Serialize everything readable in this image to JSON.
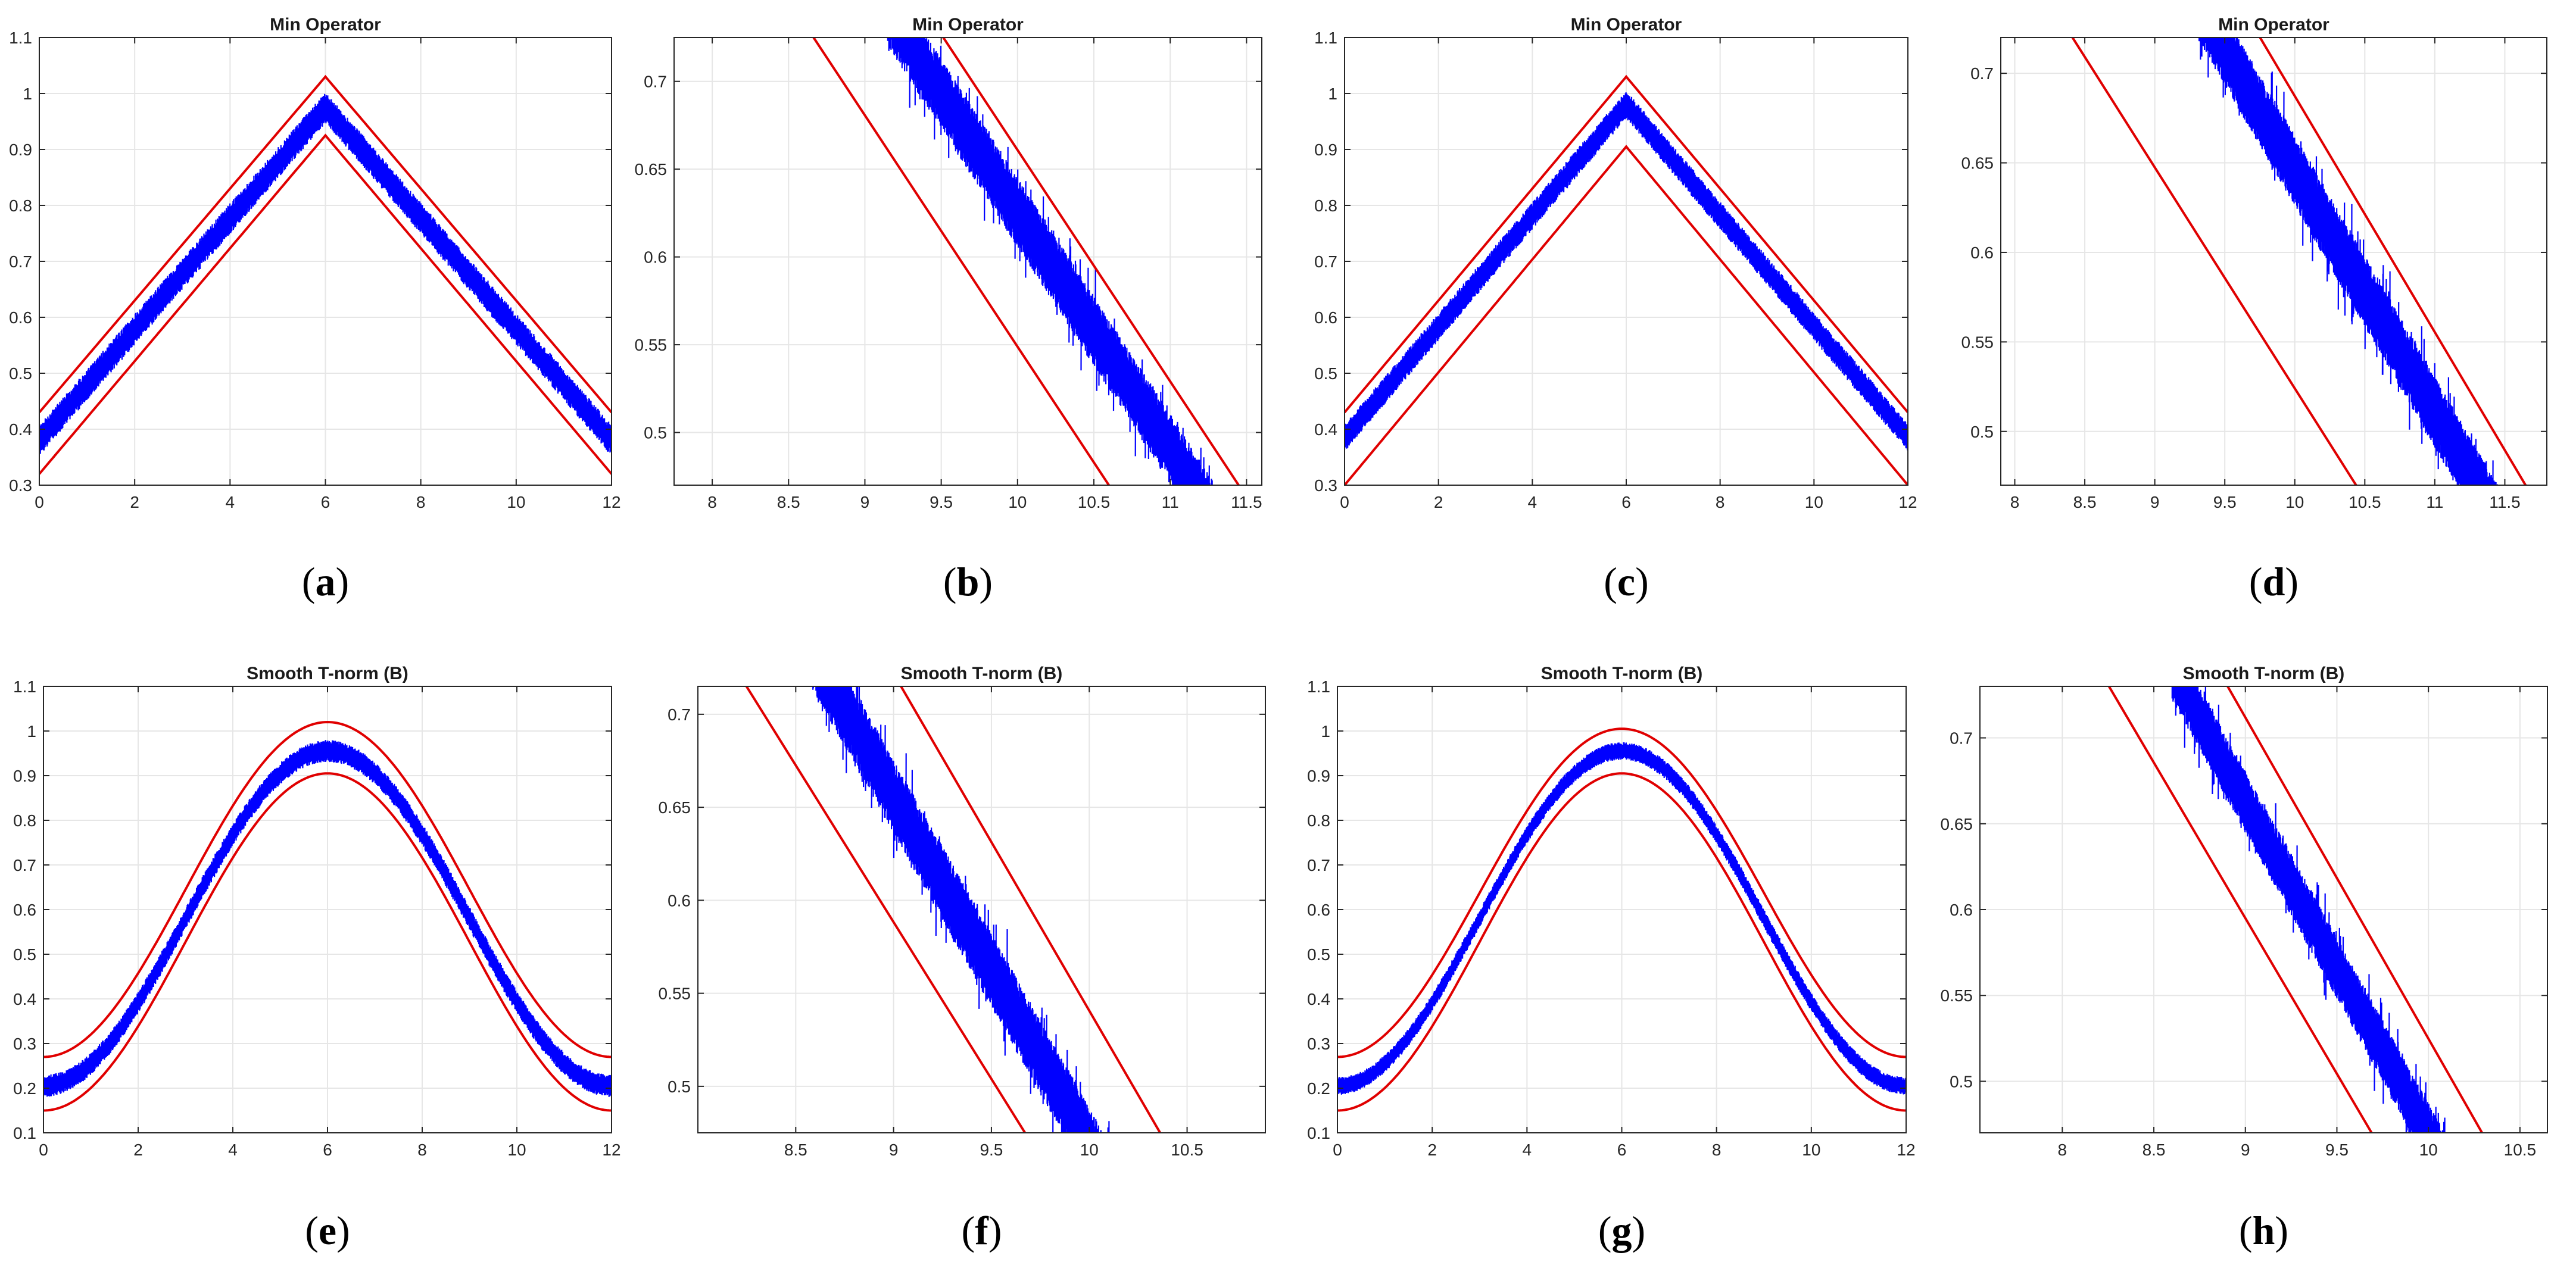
{
  "figure": {
    "style": {
      "noisy_band_color": "#0000ff",
      "envelope_color": "#e00000",
      "grid_color": "#e6e6e6",
      "axes_color": "#262626"
    }
  },
  "chart_data": [
    {
      "id": "a",
      "caption_letter": "a",
      "type": "line",
      "title": "Min Operator",
      "xlabel": "",
      "ylabel": "",
      "xlim": [
        0,
        12
      ],
      "ylim": [
        0.3,
        1.1
      ],
      "xticks": [
        0,
        2,
        4,
        6,
        8,
        10,
        12
      ],
      "xtick_labels": [
        "0",
        "2",
        "4",
        "6",
        "8",
        "10",
        "12"
      ],
      "yticks": [
        0.3,
        0.4,
        0.5,
        0.6,
        0.7,
        0.8,
        0.9,
        1.0,
        1.1
      ],
      "ytick_labels": [
        "0.3",
        "0.4",
        "0.5",
        "0.6",
        "0.7",
        "0.8",
        "0.9",
        "1",
        "1.1"
      ],
      "grid": true,
      "series": [
        {
          "name": "noisy signal",
          "color": "#0000ff",
          "shape": "tri",
          "x_peak": 6,
          "x_range": [
            0,
            12
          ],
          "center_edge": 0.38,
          "center_peak": 0.975,
          "band_halfwidth": 0.028
        },
        {
          "name": "upper bound",
          "color": "#e00000",
          "shape": "tri",
          "x_peak": 6,
          "x_range": [
            0,
            12
          ],
          "edge": 0.43,
          "peak": 1.03
        },
        {
          "name": "lower bound",
          "color": "#e00000",
          "shape": "tri",
          "x_peak": 6,
          "x_range": [
            0,
            12
          ],
          "edge": 0.32,
          "peak": 0.925
        }
      ]
    },
    {
      "id": "b",
      "caption_letter": "b",
      "type": "line",
      "title": "Min Operator",
      "xlabel": "",
      "ylabel": "",
      "xlim": [
        7.75,
        11.6
      ],
      "ylim": [
        0.47,
        0.725
      ],
      "xticks": [
        8,
        8.5,
        9,
        9.5,
        10,
        10.5,
        11,
        11.5
      ],
      "xtick_labels": [
        "8",
        "8.5",
        "9",
        "9.5",
        "10",
        "10.5",
        "11",
        "11.5"
      ],
      "yticks": [
        0.5,
        0.55,
        0.6,
        0.65,
        0.7
      ],
      "ytick_labels": [
        "0.5",
        "0.55",
        "0.6",
        "0.65",
        "0.7"
      ],
      "grid": true,
      "series": [
        {
          "name": "noisy signal",
          "color": "#0000ff",
          "shape": "line",
          "points": [
            [
              9.15,
              0.74
            ],
            [
              11.3,
              0.45
            ]
          ],
          "band_halfwidth": 0.02
        },
        {
          "name": "upper bound",
          "color": "#e00000",
          "shape": "line",
          "points": [
            [
              9.4,
              0.74
            ],
            [
              11.6,
              0.45
            ]
          ]
        },
        {
          "name": "lower bound",
          "color": "#e00000",
          "shape": "line",
          "points": [
            [
              8.55,
              0.74
            ],
            [
              10.75,
              0.45
            ]
          ]
        }
      ]
    },
    {
      "id": "c",
      "caption_letter": "c",
      "type": "line",
      "title": "Min Operator",
      "xlabel": "",
      "ylabel": "",
      "xlim": [
        0,
        12
      ],
      "ylim": [
        0.3,
        1.1
      ],
      "xticks": [
        0,
        2,
        4,
        6,
        8,
        10,
        12
      ],
      "xtick_labels": [
        "0",
        "2",
        "4",
        "6",
        "8",
        "10",
        "12"
      ],
      "yticks": [
        0.3,
        0.4,
        0.5,
        0.6,
        0.7,
        0.8,
        0.9,
        1.0,
        1.1
      ],
      "ytick_labels": [
        "0.3",
        "0.4",
        "0.5",
        "0.6",
        "0.7",
        "0.8",
        "0.9",
        "1",
        "1.1"
      ],
      "grid": true,
      "series": [
        {
          "name": "noisy signal",
          "color": "#0000ff",
          "shape": "tri",
          "x_peak": 6,
          "x_range": [
            0,
            12
          ],
          "center_edge": 0.385,
          "center_peak": 0.98,
          "band_halfwidth": 0.025
        },
        {
          "name": "upper bound",
          "color": "#e00000",
          "shape": "tri",
          "x_peak": 6,
          "x_range": [
            0,
            12
          ],
          "edge": 0.43,
          "peak": 1.03
        },
        {
          "name": "lower bound",
          "color": "#e00000",
          "shape": "tri",
          "x_peak": 6,
          "x_range": [
            0,
            12
          ],
          "edge": 0.3,
          "peak": 0.905
        }
      ]
    },
    {
      "id": "d",
      "caption_letter": "d",
      "type": "line",
      "title": "Min Operator",
      "xlabel": "",
      "ylabel": "",
      "xlim": [
        7.9,
        11.8
      ],
      "ylim": [
        0.47,
        0.72
      ],
      "xticks": [
        8,
        8.5,
        9,
        9.5,
        10,
        10.5,
        11,
        11.5
      ],
      "xtick_labels": [
        "8",
        "8.5",
        "9",
        "9.5",
        "10",
        "10.5",
        "11",
        "11.5"
      ],
      "yticks": [
        0.5,
        0.55,
        0.6,
        0.65,
        0.7
      ],
      "ytick_labels": [
        "0.5",
        "0.55",
        "0.6",
        "0.65",
        "0.7"
      ],
      "grid": true,
      "series": [
        {
          "name": "noisy signal",
          "color": "#0000ff",
          "shape": "line",
          "points": [
            [
              9.3,
              0.74
            ],
            [
              11.45,
              0.45
            ]
          ],
          "band_halfwidth": 0.02
        },
        {
          "name": "upper bound",
          "color": "#e00000",
          "shape": "line",
          "points": [
            [
              9.6,
              0.74
            ],
            [
              11.8,
              0.45
            ]
          ]
        },
        {
          "name": "lower bound",
          "color": "#e00000",
          "shape": "line",
          "points": [
            [
              8.25,
              0.74
            ],
            [
              10.6,
              0.45
            ]
          ]
        }
      ]
    },
    {
      "id": "e",
      "caption_letter": "e",
      "type": "line",
      "title": "Smooth T-norm (B)",
      "xlabel": "",
      "ylabel": "",
      "xlim": [
        0,
        12
      ],
      "ylim": [
        0.1,
        1.1
      ],
      "xticks": [
        0,
        2,
        4,
        6,
        8,
        10,
        12
      ],
      "xtick_labels": [
        "0",
        "2",
        "4",
        "6",
        "8",
        "10",
        "12"
      ],
      "yticks": [
        0.1,
        0.2,
        0.3,
        0.4,
        0.5,
        0.6,
        0.7,
        0.8,
        0.9,
        1.0,
        1.1
      ],
      "ytick_labels": [
        "0.1",
        "0.2",
        "0.3",
        "0.4",
        "0.5",
        "0.6",
        "0.7",
        "0.8",
        "0.9",
        "1",
        "1.1"
      ],
      "grid": true,
      "series": [
        {
          "name": "noisy signal",
          "color": "#0000ff",
          "shape": "bell",
          "x_peak": 6,
          "x_range": [
            0,
            12
          ],
          "center_edge": 0.205,
          "center_peak": 0.955,
          "band_halfwidth": 0.025
        },
        {
          "name": "upper bound",
          "color": "#e00000",
          "shape": "bell",
          "x_peak": 6,
          "x_range": [
            0,
            12
          ],
          "edge": 0.27,
          "peak": 1.02
        },
        {
          "name": "lower bound",
          "color": "#e00000",
          "shape": "bell",
          "x_peak": 6,
          "x_range": [
            0,
            12
          ],
          "edge": 0.15,
          "peak": 0.905
        }
      ]
    },
    {
      "id": "f",
      "caption_letter": "f",
      "type": "line",
      "title": "Smooth T-norm (B)",
      "xlabel": "",
      "ylabel": "",
      "xlim": [
        8.0,
        10.9
      ],
      "ylim": [
        0.475,
        0.715
      ],
      "xticks": [
        8.5,
        9,
        9.5,
        10,
        10.5
      ],
      "xtick_labels": [
        "8.5",
        "9",
        "9.5",
        "10",
        "10.5"
      ],
      "yticks": [
        0.5,
        0.55,
        0.6,
        0.65,
        0.7
      ],
      "ytick_labels": [
        "0.5",
        "0.55",
        "0.6",
        "0.65",
        "0.7"
      ],
      "grid": true,
      "series": [
        {
          "name": "noisy signal",
          "color": "#0000ff",
          "shape": "line",
          "points": [
            [
              8.55,
              0.74
            ],
            [
              10.1,
              0.45
            ]
          ],
          "band_halfwidth": 0.02
        },
        {
          "name": "upper bound",
          "color": "#e00000",
          "shape": "line",
          "points": [
            [
              8.9,
              0.74
            ],
            [
              10.5,
              0.45
            ]
          ]
        },
        {
          "name": "lower bound",
          "color": "#e00000",
          "shape": "line",
          "points": [
            [
              8.1,
              0.74
            ],
            [
              9.82,
              0.45
            ]
          ]
        }
      ]
    },
    {
      "id": "g",
      "caption_letter": "g",
      "type": "line",
      "title": "Smooth T-norm (B)",
      "xlabel": "",
      "ylabel": "",
      "xlim": [
        0,
        12
      ],
      "ylim": [
        0.1,
        1.1
      ],
      "xticks": [
        0,
        2,
        4,
        6,
        8,
        10,
        12
      ],
      "xtick_labels": [
        "0",
        "2",
        "4",
        "6",
        "8",
        "10",
        "12"
      ],
      "yticks": [
        0.1,
        0.2,
        0.3,
        0.4,
        0.5,
        0.6,
        0.7,
        0.8,
        0.9,
        1.0,
        1.1
      ],
      "ytick_labels": [
        "0.1",
        "0.2",
        "0.3",
        "0.4",
        "0.5",
        "0.6",
        "0.7",
        "0.8",
        "0.9",
        "1",
        "1.1"
      ],
      "grid": true,
      "series": [
        {
          "name": "noisy signal",
          "color": "#0000ff",
          "shape": "bell",
          "x_peak": 6,
          "x_range": [
            0,
            12
          ],
          "center_edge": 0.205,
          "center_peak": 0.955,
          "band_halfwidth": 0.02
        },
        {
          "name": "upper bound",
          "color": "#e00000",
          "shape": "bell",
          "x_peak": 6,
          "x_range": [
            0,
            12
          ],
          "edge": 0.27,
          "peak": 1.005
        },
        {
          "name": "lower bound",
          "color": "#e00000",
          "shape": "bell",
          "x_peak": 6,
          "x_range": [
            0,
            12
          ],
          "edge": 0.15,
          "peak": 0.905
        }
      ]
    },
    {
      "id": "h",
      "caption_letter": "h",
      "type": "line",
      "title": "Smooth T-norm (B)",
      "xlabel": "",
      "ylabel": "",
      "xlim": [
        7.55,
        10.65
      ],
      "ylim": [
        0.47,
        0.73
      ],
      "xticks": [
        8,
        8.5,
        9,
        9.5,
        10,
        10.5
      ],
      "xtick_labels": [
        "8",
        "8.5",
        "9",
        "9.5",
        "10",
        "10.5"
      ],
      "yticks": [
        0.5,
        0.55,
        0.6,
        0.65,
        0.7
      ],
      "ytick_labels": [
        "0.5",
        "0.55",
        "0.6",
        "0.65",
        "0.7"
      ],
      "grid": true,
      "series": [
        {
          "name": "noisy signal",
          "color": "#0000ff",
          "shape": "line",
          "points": [
            [
              8.6,
              0.74
            ],
            [
              10.1,
              0.45
            ]
          ],
          "band_halfwidth": 0.018
        },
        {
          "name": "upper bound",
          "color": "#e00000",
          "shape": "line",
          "points": [
            [
              8.85,
              0.74
            ],
            [
              10.4,
              0.45
            ]
          ]
        },
        {
          "name": "lower bound",
          "color": "#e00000",
          "shape": "line",
          "points": [
            [
              8.2,
              0.74
            ],
            [
              9.8,
              0.45
            ]
          ]
        }
      ]
    }
  ]
}
